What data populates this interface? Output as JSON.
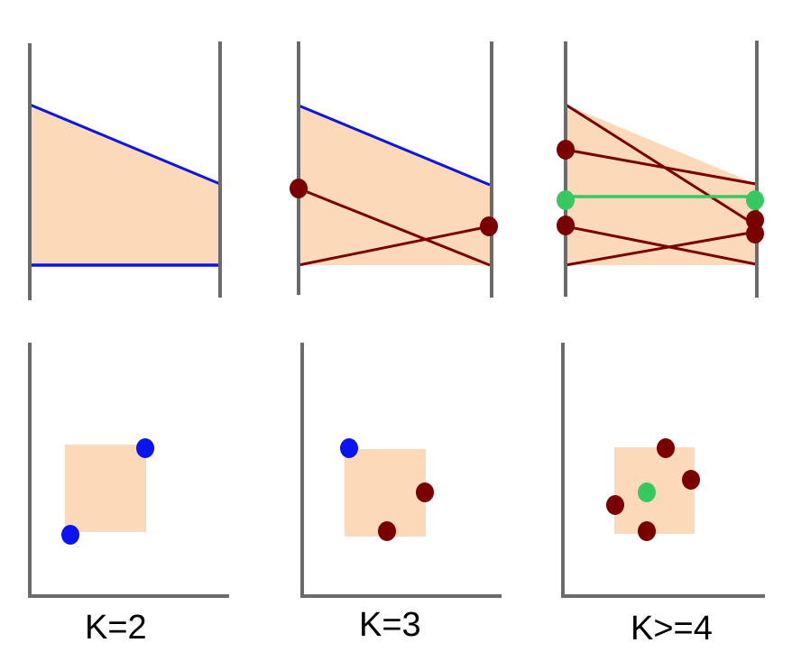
{
  "colors": {
    "axis": "#6b6b6b",
    "fill": "#fcd9b8",
    "blue": "#0a14f0",
    "dark_red": "#7a0000",
    "green": "#38c860"
  },
  "captions": {
    "k2": "K=2",
    "k3": "K=3",
    "k4": "K>=4"
  },
  "top_panels": [
    {
      "name": "k2-top",
      "lines": 2,
      "endpoints_marked": 0
    },
    {
      "name": "k3-top",
      "lines": 3,
      "endpoints_marked": 2
    },
    {
      "name": "k4-top",
      "lines": 5,
      "endpoints_marked": 6
    }
  ],
  "bottom_panels": [
    {
      "name": "k2-bottom",
      "points": 2
    },
    {
      "name": "k3-bottom",
      "points": 3
    },
    {
      "name": "k4-bottom",
      "points": 5
    }
  ]
}
